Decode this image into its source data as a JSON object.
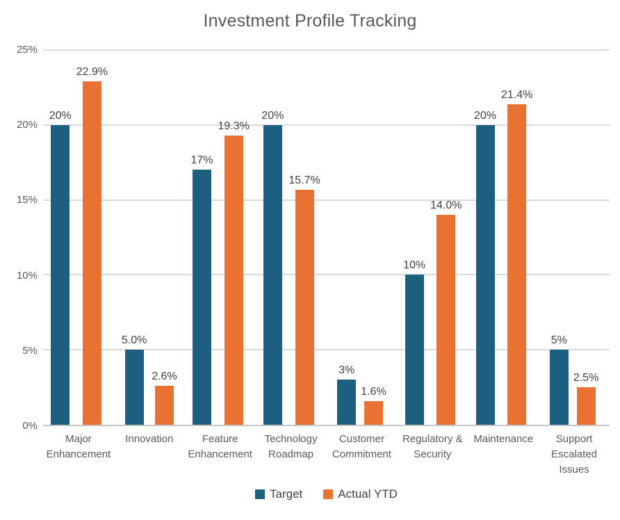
{
  "chart_data": {
    "type": "bar",
    "title": "Investment Profile Tracking",
    "categories": [
      "Major Enhancement",
      "Innovation",
      "Feature Enhancement",
      "Technology Roadmap",
      "Customer Commitment",
      "Regulatory & Security",
      "Maintenance",
      "Support Escalated Issues"
    ],
    "series": [
      {
        "name": "Target",
        "color": "#1D5F80",
        "values": [
          20,
          5,
          17,
          20,
          3,
          10,
          20,
          5
        ],
        "labels": [
          "20%",
          "5.0%",
          "17%",
          "20%",
          "3%",
          "10%",
          "20%",
          "5%"
        ]
      },
      {
        "name": "Actual YTD",
        "color": "#E97132",
        "values": [
          22.9,
          2.6,
          19.3,
          15.7,
          1.6,
          14.0,
          21.4,
          2.5
        ],
        "labels": [
          "22.9%",
          "2.6%",
          "19.3%",
          "15.7%",
          "1.6%",
          "14.0%",
          "21.4%",
          "2.5%"
        ]
      }
    ],
    "xlabel": "",
    "ylabel": "",
    "ylim": [
      0,
      25
    ],
    "yticks": [
      0,
      5,
      10,
      15,
      20,
      25
    ],
    "ytick_labels": [
      "0%",
      "5%",
      "10%",
      "15%",
      "20%",
      "25%"
    ],
    "grid": true,
    "legend_position": "bottom"
  },
  "colors": {
    "target_series": "#1D5F80",
    "actual_series": "#E97132",
    "gridline": "#D9D9D9",
    "axis_line": "#C6C6C6",
    "title_text": "#595959",
    "axis_text": "#595959",
    "value_label_text": "#3F3F3F",
    "background": "#FFFFFF"
  }
}
